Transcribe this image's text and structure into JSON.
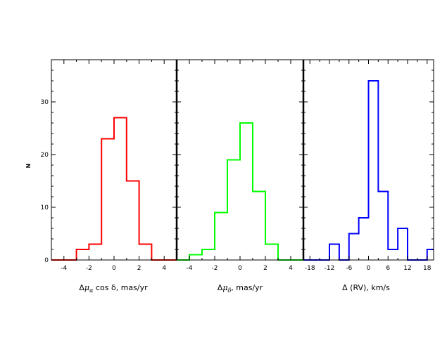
{
  "chart_data": [
    {
      "type": "histogram",
      "xlabel": "Δμα cos δ,  mas/yr",
      "ylabel": "N",
      "xlim": [
        -5,
        5
      ],
      "ylim": [
        0,
        38
      ],
      "xticks": [
        -4,
        -2,
        0,
        2,
        4
      ],
      "yticks": [
        0,
        10,
        20,
        30
      ],
      "color": "#ff0000",
      "bin_edges": [
        -5,
        -3,
        -2,
        -1,
        0,
        1,
        2,
        3,
        5
      ],
      "counts": [
        0,
        2,
        3,
        23,
        27,
        15,
        3,
        0
      ]
    },
    {
      "type": "histogram",
      "xlabel": "Δμδ,  mas/yr",
      "xlim": [
        -5,
        5
      ],
      "ylim": [
        0,
        38
      ],
      "xticks": [
        -4,
        -2,
        0,
        2,
        4
      ],
      "color": "#00ff00",
      "bin_edges": [
        -5,
        -4,
        -3,
        -2,
        -1,
        0,
        1,
        2,
        3,
        5
      ],
      "counts": [
        0,
        1,
        2,
        9,
        19,
        26,
        13,
        3,
        0
      ]
    },
    {
      "type": "histogram",
      "xlabel": "Δ (RV),  km/s",
      "xlim": [
        -20,
        20
      ],
      "ylim": [
        0,
        38
      ],
      "xticks": [
        -18,
        -12,
        -6,
        0,
        6,
        12,
        18
      ],
      "color": "#0000ff",
      "bin_edges": [
        -20,
        -12,
        -9,
        -6,
        -3,
        0,
        3,
        6,
        9,
        12,
        15,
        18,
        20
      ],
      "counts": [
        0,
        3,
        0,
        5,
        8,
        34,
        13,
        2,
        6,
        0,
        0,
        2
      ]
    }
  ],
  "labels": {
    "ylabel": "N",
    "x1_delta": "Δ",
    "x1_mu": "μ",
    "x1_sub": "α",
    "x1_rest": " cos δ,  mas/yr",
    "x2_delta": "Δ",
    "x2_mu": "μ",
    "x2_sub": "δ",
    "x2_rest": ",  mas/yr",
    "x3": "Δ (RV),  km/s"
  }
}
